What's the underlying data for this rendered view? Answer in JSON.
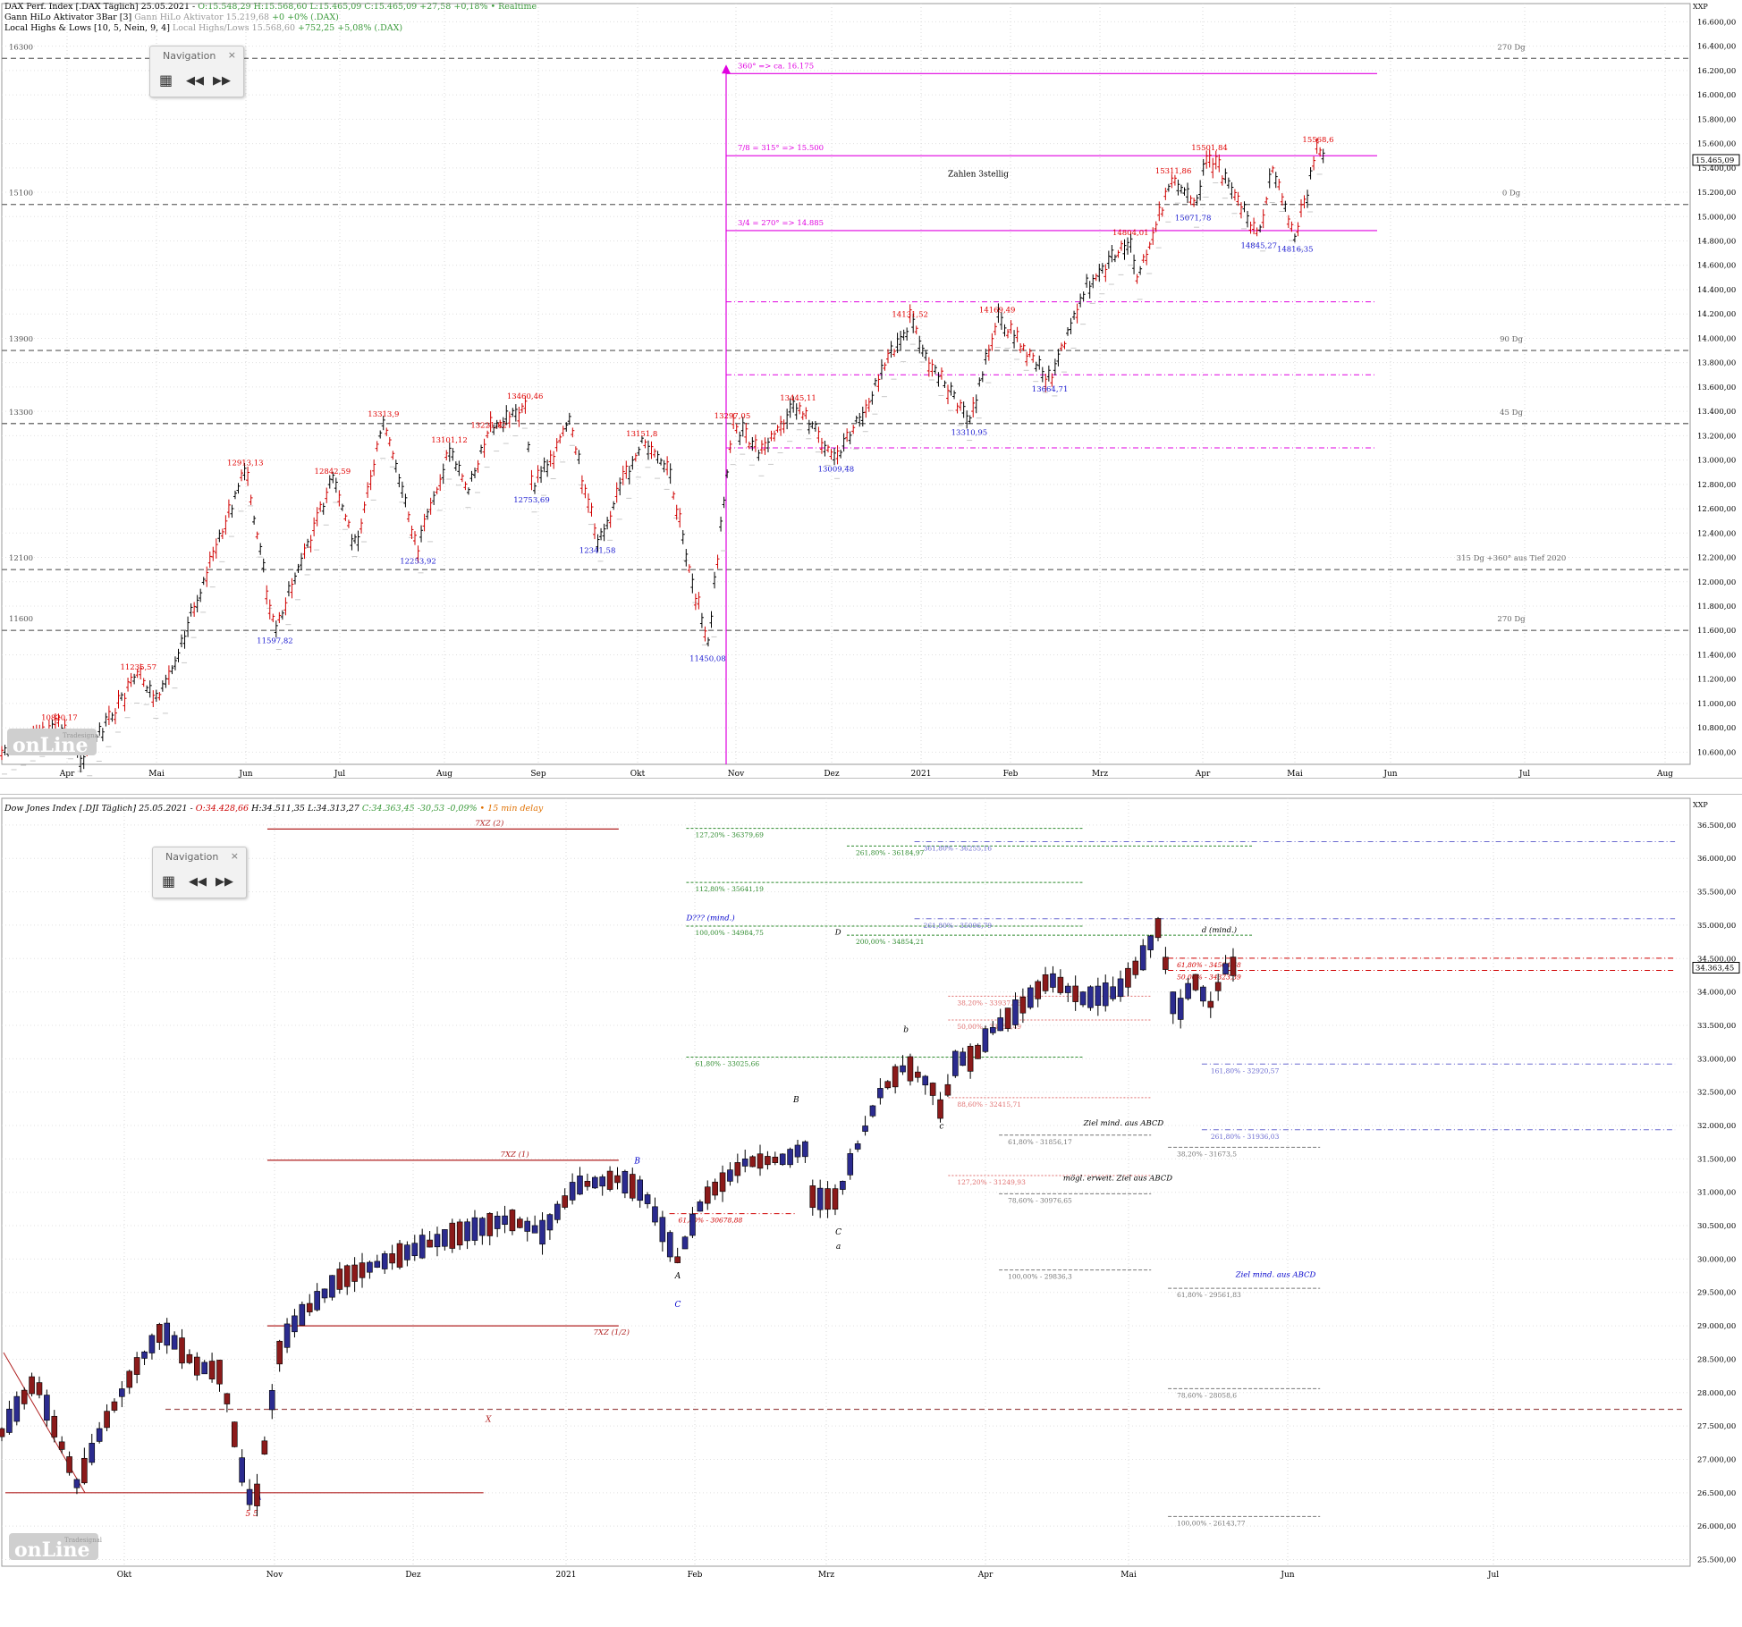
{
  "top": {
    "header": [
      {
        "main": "DAX Perf. Index [.DAX Täglich] 25.05.2021 - ",
        "green": "O:15.548,29 H:15.568,60 L:15.465,09 C:15.465,09 +27,58 +0,18% • Realtime",
        "grey": ""
      },
      {
        "main": "Gann HiLo Aktivator 3Bar [3] ",
        "green": "",
        "grey": "Gann HiLo Aktivator 15.219,68 ",
        "tail": "+0 +0% (.DAX)"
      },
      {
        "main": "Local Highs & Lows [10, 5, Nein, 9, 4] ",
        "grey": "Local Highs/Lows 15.568,60 ",
        "tail": "+752,25 +5,08% (.DAX)"
      }
    ],
    "nav": {
      "title": "Navigation",
      "close": "×",
      "grid": "▦",
      "back": "◀◀",
      "fwd": "▶▶"
    },
    "axis_unit": "XXP",
    "price_badge": "15.465,09",
    "chart_data": {
      "type": "bar",
      "title": "DAX Perf. Index [.DAX Täglich]",
      "x_months": [
        "Apr",
        "Mai",
        "Jun",
        "Jul",
        "Aug",
        "Sep",
        "Okt",
        "Nov",
        "Dez",
        "2021",
        "Feb",
        "Mrz",
        "Apr",
        "Mai",
        "Jun",
        "Jul",
        "Aug"
      ],
      "ylim": [
        10500,
        16750
      ],
      "y_ticks": [
        "10.600,00",
        "10.800,00",
        "11.000,00",
        "11.200,00",
        "11.400,00",
        "11.600,00",
        "11.800,00",
        "12.000,00",
        "12.200,00",
        "12.400,00",
        "12.600,00",
        "12.800,00",
        "13.000,00",
        "13.200,00",
        "13.400,00",
        "13.600,00",
        "13.800,00",
        "14.000,00",
        "14.200,00",
        "14.400,00",
        "14.600,00",
        "14.800,00",
        "15.000,00",
        "15.200,00",
        "15.400,00",
        "15.600,00",
        "15.800,00",
        "16.000,00",
        "16.200,00",
        "16.400,00",
        "16.600,00"
      ],
      "y_tick_values": [
        10600,
        10800,
        11000,
        11200,
        11400,
        11600,
        11800,
        12000,
        12200,
        12400,
        12600,
        12800,
        13000,
        13200,
        13400,
        13600,
        13800,
        14000,
        14200,
        14400,
        14600,
        14800,
        15000,
        15200,
        15400,
        15600,
        15800,
        16000,
        16200,
        16400,
        16600
      ],
      "gann_levels": [
        {
          "value": 16300,
          "left": "16300",
          "right": "270 Dg"
        },
        {
          "value": 15100,
          "left": "15100",
          "right": "0 Dg"
        },
        {
          "value": 13900,
          "left": "13900",
          "right": "90 Dg"
        },
        {
          "value": 13300,
          "left": "13300",
          "right": "45 Dg"
        },
        {
          "value": 12100,
          "left": "12100",
          "right": "315 Dg +360° aus Tief 2020"
        },
        {
          "value": 11600,
          "left": "11600",
          "right": "270 Dg"
        }
      ],
      "targets": [
        {
          "value": 16175,
          "label": "360° => ca. 16.175"
        },
        {
          "value": 15500,
          "label": "7/8 = 315° => 15.500"
        },
        {
          "value": 14885,
          "label": "3/4 = 270° => 14.885"
        }
      ],
      "dashdot_levels": [
        14300,
        13700,
        13100
      ],
      "note": "Zahlen 3stellig",
      "highs": [
        {
          "label": "10820,17",
          "x": 0.035,
          "v": 10820
        },
        {
          "label": "11235,57",
          "x": 0.083,
          "v": 11235
        },
        {
          "label": "12913,13",
          "x": 0.148,
          "v": 12913
        },
        {
          "label": "12842,59",
          "x": 0.201,
          "v": 12842
        },
        {
          "label": "13313,9",
          "x": 0.232,
          "v": 13313
        },
        {
          "label": "13101,12",
          "x": 0.272,
          "v": 13101
        },
        {
          "label": "13221,82",
          "x": 0.296,
          "v": 13221
        },
        {
          "label": "13460,46",
          "x": 0.318,
          "v": 13460
        },
        {
          "label": "13151,8",
          "x": 0.389,
          "v": 13151
        },
        {
          "label": "13297,05",
          "x": 0.444,
          "v": 13297
        },
        {
          "label": "13445,11",
          "x": 0.484,
          "v": 13445
        },
        {
          "label": "14131,52",
          "x": 0.552,
          "v": 14131
        },
        {
          "label": "14169,49",
          "x": 0.605,
          "v": 14169
        },
        {
          "label": "14804,01",
          "x": 0.686,
          "v": 14804
        },
        {
          "label": "15311,86",
          "x": 0.712,
          "v": 15311
        },
        {
          "label": "15501,84",
          "x": 0.734,
          "v": 15501
        },
        {
          "label": "15568,6",
          "x": 0.8,
          "v": 15568
        }
      ],
      "lows": [
        {
          "label": "11597,82",
          "x": 0.166,
          "v": 11597
        },
        {
          "label": "12253,92",
          "x": 0.253,
          "v": 12253
        },
        {
          "label": "12753,69",
          "x": 0.322,
          "v": 12753
        },
        {
          "label": "12341,58",
          "x": 0.362,
          "v": 12341
        },
        {
          "label": "11450,08",
          "x": 0.429,
          "v": 11450
        },
        {
          "label": "13009,48",
          "x": 0.507,
          "v": 13009
        },
        {
          "label": "13310,95",
          "x": 0.588,
          "v": 13310
        },
        {
          "label": "13664,71",
          "x": 0.637,
          "v": 13664
        },
        {
          "label": "15071,78",
          "x": 0.724,
          "v": 15071
        },
        {
          "label": "14845,27",
          "x": 0.764,
          "v": 14845
        },
        {
          "label": "14816,35",
          "x": 0.786,
          "v": 14816
        }
      ],
      "path": [
        [
          0.0,
          10600
        ],
        [
          0.035,
          10820
        ],
        [
          0.05,
          10550
        ],
        [
          0.083,
          11235
        ],
        [
          0.095,
          11000
        ],
        [
          0.148,
          12913
        ],
        [
          0.166,
          11597
        ],
        [
          0.201,
          12842
        ],
        [
          0.215,
          12300
        ],
        [
          0.232,
          13313
        ],
        [
          0.253,
          12253
        ],
        [
          0.272,
          13101
        ],
        [
          0.283,
          12750
        ],
        [
          0.296,
          13221
        ],
        [
          0.318,
          13460
        ],
        [
          0.322,
          12753
        ],
        [
          0.345,
          13300
        ],
        [
          0.362,
          12341
        ],
        [
          0.389,
          13151
        ],
        [
          0.405,
          12900
        ],
        [
          0.429,
          11450
        ],
        [
          0.444,
          13297
        ],
        [
          0.46,
          13050
        ],
        [
          0.484,
          13445
        ],
        [
          0.507,
          13009
        ],
        [
          0.552,
          14131
        ],
        [
          0.565,
          13800
        ],
        [
          0.588,
          13310
        ],
        [
          0.605,
          14169
        ],
        [
          0.637,
          13664
        ],
        [
          0.66,
          14450
        ],
        [
          0.686,
          14804
        ],
        [
          0.69,
          14500
        ],
        [
          0.712,
          15311
        ],
        [
          0.724,
          15071
        ],
        [
          0.734,
          15501
        ],
        [
          0.764,
          14845
        ],
        [
          0.772,
          15400
        ],
        [
          0.786,
          14816
        ],
        [
          0.8,
          15568
        ],
        [
          0.805,
          15465
        ]
      ]
    }
  },
  "bottom": {
    "header": [
      {
        "main": "Dow Jones Index [.DJI Täglich] 25.05.2021 - ",
        "red": "O:34.428,66 ",
        "rest": "H:34.511,35 L:34.313,27 ",
        "green": "C:34.363,45 -30,53 -0,09%",
        "orange": " • 15 min delay"
      }
    ],
    "nav": {
      "title": "Navigation",
      "close": "×",
      "grid": "▦",
      "back": "◀◀",
      "fwd": "▶▶"
    },
    "axis_unit": "XXP",
    "price_badge": "34.363,45",
    "chart_data": {
      "type": "candlestick",
      "title": "Dow Jones Index [.DJI Täglich]",
      "x_months": [
        "Okt",
        "Nov",
        "Dez",
        "2021",
        "Feb",
        "Mrz",
        "Apr",
        "Mai",
        "Jun",
        "Jul"
      ],
      "ylim": [
        25400,
        36900
      ],
      "y_ticks": [
        "25.500,00",
        "26.000,00",
        "26.500,00",
        "27.000,00",
        "27.500,00",
        "28.000,00",
        "28.500,00",
        "29.000,00",
        "29.500,00",
        "30.000,00",
        "30.500,00",
        "31.000,00",
        "31.500,00",
        "32.000,00",
        "32.500,00",
        "33.000,00",
        "33.500,00",
        "34.000,00",
        "34.500,00",
        "35.000,00",
        "35.500,00",
        "36.000,00",
        "36.500,00"
      ],
      "y_tick_values": [
        25500,
        26000,
        26500,
        27000,
        27500,
        28000,
        28500,
        29000,
        29500,
        30000,
        30500,
        31000,
        31500,
        32000,
        32500,
        33000,
        33500,
        34000,
        34500,
        35000,
        35500,
        36000,
        36500
      ],
      "xz_lines": [
        {
          "value": 36440,
          "x1": 0.155,
          "x2": 0.365,
          "label": "7XZ (2)",
          "lx": 0.28
        },
        {
          "value": 31480,
          "x1": 0.155,
          "x2": 0.365,
          "label": "7XZ (1)",
          "lx": 0.295
        },
        {
          "value": 29000,
          "x1": 0.155,
          "x2": 0.365,
          "label": "7XZ (1/2)",
          "lx": 0.35
        },
        {
          "value": 26500,
          "x1": 0.0,
          "x2": 0.285,
          "label": "",
          "lx": 0
        }
      ],
      "x_level": {
        "value": 27750,
        "label": "X"
      },
      "fib_green": [
        {
          "value": 36450,
          "label": "127,20% - 36379,69",
          "x1": 0.405,
          "x2": 0.64
        },
        {
          "value": 36185,
          "label": "261,80% - 36184,97",
          "x1": 0.5,
          "x2": 0.74
        },
        {
          "value": 35640,
          "label": "112,80% - 35641,19",
          "x1": 0.405,
          "x2": 0.64
        },
        {
          "value": 34985,
          "label": "100,00% - 34984,75",
          "x1": 0.405,
          "x2": 0.64
        },
        {
          "value": 34850,
          "label": "200,00% - 34854,21",
          "x1": 0.5,
          "x2": 0.74
        },
        {
          "value": 33025,
          "label": "61,80% - 33025,66",
          "x1": 0.405,
          "x2": 0.64
        }
      ],
      "fib_blue": [
        {
          "value": 36250,
          "label": "361,80% - 36255,16",
          "x1": 0.54,
          "x2": 0.99
        },
        {
          "value": 35096,
          "label": "261,80% - 35096,79",
          "x1": 0.54,
          "x2": 0.99
        },
        {
          "value": 32920,
          "label": "161,80% - 32920,57",
          "x1": 0.71,
          "x2": 0.99
        },
        {
          "value": 31936,
          "label": "261,80% - 31936,03",
          "x1": 0.71,
          "x2": 0.99
        }
      ],
      "fib_red": [
        {
          "value": 34505,
          "label": "61,80% - 34504,68",
          "x1": 0.69,
          "x2": 0.99
        },
        {
          "value": 34323,
          "label": "50,00% - 34323,39",
          "x1": 0.69,
          "x2": 0.99
        },
        {
          "value": 30679,
          "label": "61,80% - 30678,88",
          "x1": 0.395,
          "x2": 0.47
        }
      ],
      "fib_salmon": [
        {
          "value": 33937,
          "label": "38,20% - 33937,86",
          "x1": 0.56,
          "x2": 0.68
        },
        {
          "value": 33580,
          "label": "50,00% - 33580,49",
          "x1": 0.56,
          "x2": 0.68
        },
        {
          "value": 32416,
          "label": "88,60% - 32415,71",
          "x1": 0.56,
          "x2": 0.68
        },
        {
          "value": 31250,
          "label": "127,20% - 31249,93",
          "x1": 0.56,
          "x2": 0.68
        }
      ],
      "fib_grey": [
        {
          "value": 31856,
          "label": "61,80% - 31856,17",
          "x1": 0.59,
          "x2": 0.68
        },
        {
          "value": 31673,
          "label": "38,20% - 31673,5",
          "x1": 0.69,
          "x2": 0.78
        },
        {
          "value": 30977,
          "label": "78,60% - 30976,65",
          "x1": 0.59,
          "x2": 0.68
        },
        {
          "value": 29836,
          "label": "100,00% - 29836,3",
          "x1": 0.59,
          "x2": 0.68
        },
        {
          "value": 29562,
          "label": "61,80% - 29561,83",
          "x1": 0.69,
          "x2": 0.78
        },
        {
          "value": 28059,
          "label": "78,60% - 28058,6",
          "x1": 0.69,
          "x2": 0.78
        },
        {
          "value": 26144,
          "label": "100,00% - 26143,77",
          "x1": 0.69,
          "x2": 0.78
        }
      ],
      "notes": [
        {
          "text": "D??? (mind.)",
          "x": 0.405,
          "v": 35070,
          "color": "#0000cc"
        },
        {
          "text": "D",
          "x": 0.493,
          "v": 34860,
          "color": "#000"
        },
        {
          "text": "d (mind.)",
          "x": 0.71,
          "v": 34890,
          "color": "#000"
        },
        {
          "text": "Ziel mind. aus ABCD",
          "x": 0.64,
          "v": 32000,
          "color": "#000"
        },
        {
          "text": "mögl. erweit. Ziel aus ABCD",
          "x": 0.628,
          "v": 31180,
          "color": "#000"
        },
        {
          "text": "Ziel mind. aus ABCD",
          "x": 0.73,
          "v": 29730,
          "color": "#0000cc"
        }
      ],
      "wave_labels": [
        {
          "text": "A",
          "x": 0.152,
          "v": 26400,
          "color": "#0000cc"
        },
        {
          "text": "5 5",
          "x": 0.148,
          "v": 26150,
          "color": "#cc0000"
        },
        {
          "text": "B",
          "x": 0.376,
          "v": 31430,
          "color": "#0000cc"
        },
        {
          "text": "A",
          "x": 0.4,
          "v": 29710,
          "color": "#000"
        },
        {
          "text": "C",
          "x": 0.4,
          "v": 29280,
          "color": "#0000cc"
        },
        {
          "text": "B",
          "x": 0.47,
          "v": 32350,
          "color": "#000"
        },
        {
          "text": "C",
          "x": 0.495,
          "v": 30370,
          "color": "#000"
        },
        {
          "text": "a",
          "x": 0.495,
          "v": 30150,
          "color": "#000"
        },
        {
          "text": "b",
          "x": 0.535,
          "v": 33400,
          "color": "#000"
        },
        {
          "text": "c",
          "x": 0.556,
          "v": 31950,
          "color": "#000"
        }
      ],
      "path": [
        [
          0.0,
          27400
        ],
        [
          0.02,
          28200
        ],
        [
          0.045,
          26600
        ],
        [
          0.06,
          27500
        ],
        [
          0.08,
          28400
        ],
        [
          0.095,
          28950
        ],
        [
          0.115,
          28400
        ],
        [
          0.13,
          28300
        ],
        [
          0.145,
          26500
        ],
        [
          0.15,
          26300
        ],
        [
          0.165,
          28700
        ],
        [
          0.175,
          29100
        ],
        [
          0.2,
          29700
        ],
        [
          0.22,
          29900
        ],
        [
          0.26,
          30300
        ],
        [
          0.3,
          30600
        ],
        [
          0.32,
          30400
        ],
        [
          0.34,
          31100
        ],
        [
          0.365,
          31200
        ],
        [
          0.38,
          31000
        ],
        [
          0.4,
          29980
        ],
        [
          0.415,
          30900
        ],
        [
          0.44,
          31450
        ],
        [
          0.465,
          31500
        ],
        [
          0.475,
          31700
        ],
        [
          0.48,
          30900
        ],
        [
          0.495,
          30900
        ],
        [
          0.5,
          31300
        ],
        [
          0.52,
          32500
        ],
        [
          0.535,
          32900
        ],
        [
          0.55,
          32600
        ],
        [
          0.556,
          32200
        ],
        [
          0.565,
          33000
        ],
        [
          0.575,
          33000
        ],
        [
          0.585,
          33400
        ],
        [
          0.6,
          33700
        ],
        [
          0.62,
          34200
        ],
        [
          0.64,
          33900
        ],
        [
          0.66,
          34000
        ],
        [
          0.675,
          34500
        ],
        [
          0.685,
          35000
        ],
        [
          0.69,
          34200
        ],
        [
          0.695,
          33600
        ],
        [
          0.705,
          34200
        ],
        [
          0.715,
          33800
        ],
        [
          0.725,
          34400
        ],
        [
          0.733,
          34363
        ]
      ]
    }
  },
  "watermark": {
    "brand": "Tradesignal",
    "word": "onLine"
  }
}
